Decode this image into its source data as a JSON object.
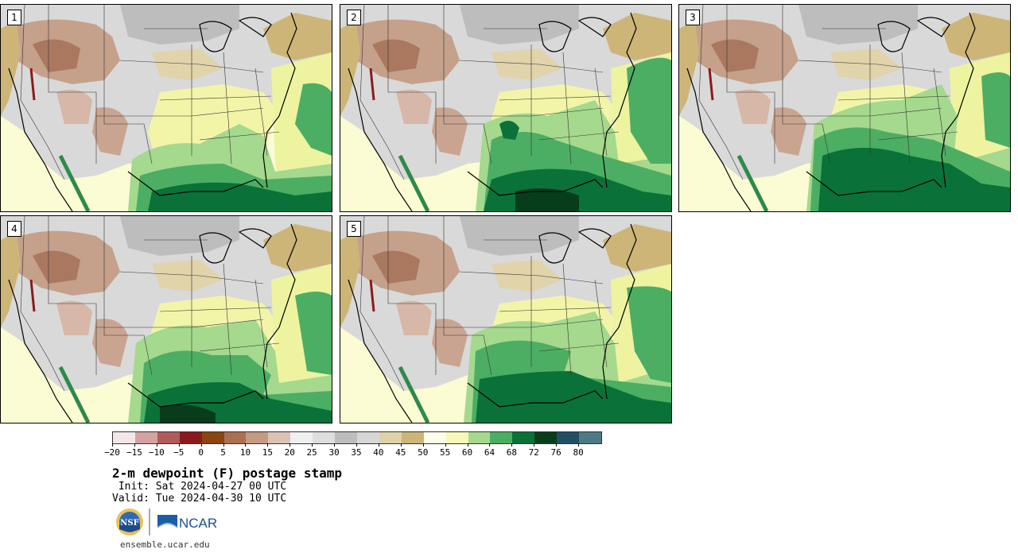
{
  "panels": [
    {
      "label": "1",
      "variant": 0
    },
    {
      "label": "2",
      "variant": 1
    },
    {
      "label": "3",
      "variant": 2
    },
    {
      "label": "4",
      "variant": 3
    },
    {
      "label": "5",
      "variant": 4
    }
  ],
  "colorbar": {
    "colors": [
      "#f3e8e8",
      "#d4a2a2",
      "#b05a5a",
      "#8c1a1a",
      "#8a4510",
      "#ab7050",
      "#c49a82",
      "#dcc2b4",
      "#efefef",
      "#dedede",
      "#bdbdbd",
      "#d6d6d6",
      "#dfd1a8",
      "#cdb577",
      "#fdfde8",
      "#f6f8b8",
      "#a5d98d",
      "#4cae63",
      "#0a7238",
      "#083d1c",
      "#224f63",
      "#4e7a82"
    ],
    "tick_labels": [
      "−20",
      "−15",
      "−10",
      "−5",
      "0",
      "5",
      "10",
      "15",
      "20",
      "25",
      "30",
      "35",
      "40",
      "45",
      "50",
      "55",
      "60",
      "64",
      "68",
      "72",
      "76",
      "80"
    ]
  },
  "title": "2-m dewpoint (F) postage stamp",
  "init_line": " Init: Sat 2024-04-27 00 UTC",
  "valid_line": "Valid: Tue 2024-04-30 10 UTC",
  "logos": {
    "nsf": "NSF",
    "ncar": "NCAR"
  },
  "footer": "ensemble.ucar.edu"
}
